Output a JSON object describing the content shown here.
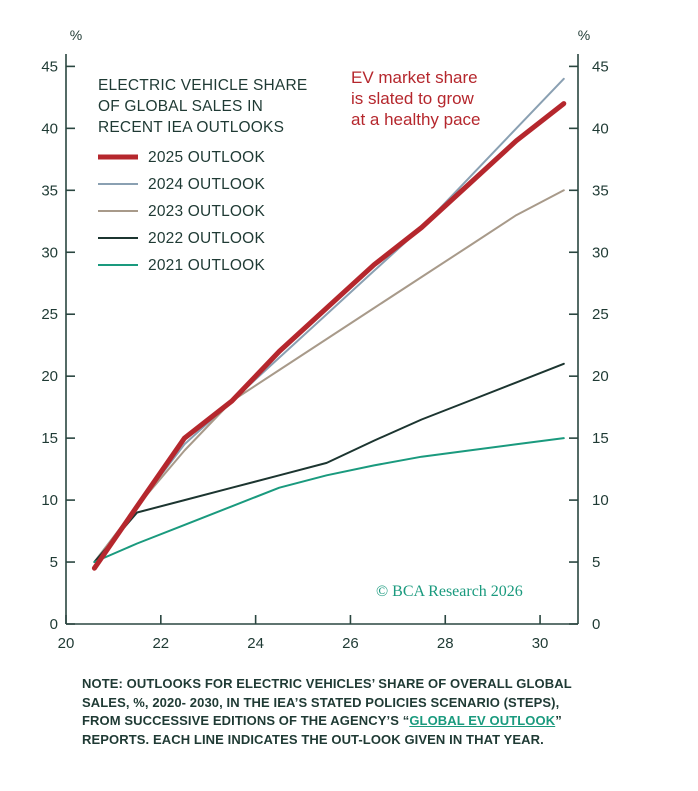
{
  "chart_data": {
    "type": "line",
    "title_lines": [
      "ELECTRIC VEHICLE SHARE",
      "OF GLOBAL SALES IN",
      "RECENT IEA OUTLOOKS"
    ],
    "annotation_lines": [
      "EV market share",
      "is slated to grow",
      "at a healthy pace"
    ],
    "watermark": "© BCA Research 2026",
    "y_unit_left": "%",
    "y_unit_right": "%",
    "xlim": [
      20,
      30.8
    ],
    "ylim": [
      0,
      46
    ],
    "x_ticks": [
      20,
      22,
      24,
      26,
      28,
      30
    ],
    "y_ticks": [
      0,
      5,
      10,
      15,
      20,
      25,
      30,
      35,
      40,
      45
    ],
    "legend_position": "top-left",
    "grid": false,
    "series": [
      {
        "name": "2025 OUTLOOK",
        "color": "#b5272d",
        "width": 5,
        "x": [
          20.6,
          21.5,
          22.5,
          23.5,
          24.5,
          25.5,
          26.5,
          27.5,
          28.5,
          29.5,
          30.5
        ],
        "y": [
          4.5,
          9.5,
          15,
          18,
          22,
          25.5,
          29,
          32,
          35.5,
          39,
          42
        ]
      },
      {
        "name": "2024 OUTLOOK",
        "color": "#8aa0b2",
        "width": 2,
        "x": [
          20.6,
          21.5,
          22.5,
          23.5,
          24.5,
          25.5,
          26.5,
          27.5,
          28.5,
          29.5,
          30.5
        ],
        "y": [
          5,
          9.5,
          14.5,
          18,
          21.5,
          25,
          28.5,
          32,
          36,
          40,
          44
        ]
      },
      {
        "name": "2023 OUTLOOK",
        "color": "#a89a8a",
        "width": 2,
        "x": [
          20.6,
          21.5,
          22.5,
          23.5,
          24.5,
          25.5,
          26.5,
          27.5,
          28.5,
          29.5,
          30.5
        ],
        "y": [
          5,
          9.5,
          14,
          18,
          20.5,
          23,
          25.5,
          28,
          30.5,
          33,
          35
        ]
      },
      {
        "name": "2022 OUTLOOK",
        "color": "#1c3530",
        "width": 2,
        "x": [
          20.6,
          21.5,
          22.5,
          23.5,
          24.5,
          25.5,
          26.5,
          27.5,
          28.5,
          29.5,
          30.5
        ],
        "y": [
          5,
          9,
          10,
          11,
          12,
          13,
          14.8,
          16.5,
          18,
          19.5,
          21
        ]
      },
      {
        "name": "2021 OUTLOOK",
        "color": "#1a9a7e",
        "width": 2,
        "x": [
          20.6,
          21.5,
          22.5,
          23.5,
          24.5,
          25.5,
          26.5,
          27.5,
          28.5,
          29.5,
          30.5
        ],
        "y": [
          5,
          6.5,
          8,
          9.5,
          11,
          12,
          12.8,
          13.5,
          14,
          14.5,
          15
        ]
      }
    ]
  },
  "note": {
    "before_link": "NOTE: OUTLOOKS FOR ELECTRIC VEHICLES’ SHARE OF OVERALL GLOBAL SALES, %, 2020- 2030, IN THE IEA’S STATED POLICIES SCENARIO (STEPS), FROM SUCCESSIVE EDITIONS OF THE AGENCY’S “",
    "link_text": "GLOBAL EV OUTLOOK",
    "after_link": "” REPORTS. EACH LINE INDICATES THE OUT-LOOK GIVEN IN THAT YEAR."
  }
}
